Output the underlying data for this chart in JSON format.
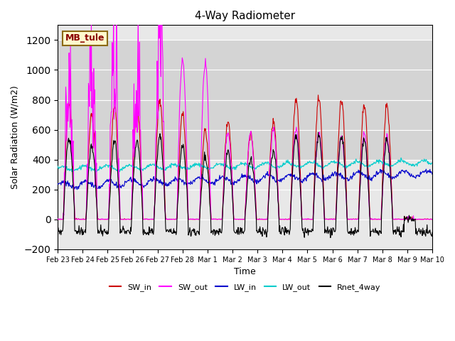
{
  "title": "4-Way Radiometer",
  "xlabel": "Time",
  "ylabel": "Solar Radiation (W/m2)",
  "station_label": "MB_tule",
  "ylim": [
    -200,
    1300
  ],
  "yticks": [
    -200,
    0,
    200,
    400,
    600,
    800,
    1000,
    1200
  ],
  "date_labels": [
    "Feb 23",
    "Feb 24",
    "Feb 25",
    "Feb 26",
    "Feb 27",
    "Feb 28",
    "Mar 1",
    "Mar 2",
    "Mar 3",
    "Mar 4",
    "Mar 5",
    "Mar 6",
    "Mar 7",
    "Mar 8",
    "Mar 9",
    "Mar 10"
  ],
  "colors": {
    "SW_in": "#cc0000",
    "SW_out": "#ff00ff",
    "LW_in": "#0000cc",
    "LW_out": "#00cccc",
    "Rnet_4way": "#000000"
  },
  "legend_labels": [
    "SW_in",
    "SW_out",
    "LW_in",
    "LW_out",
    "Rnet_4way"
  ],
  "background_color": "#e8e8e8",
  "shaded_region_color": "#d0d0d0",
  "figsize": [
    6.4,
    4.8
  ],
  "dpi": 100
}
